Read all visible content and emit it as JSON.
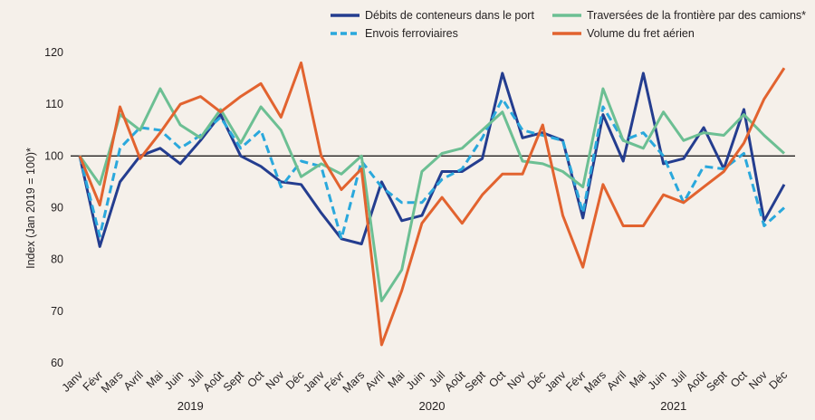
{
  "chart_data": {
    "type": "line",
    "ylabel": "Index (Jan 2019 = 100)*",
    "ylim": [
      60,
      120
    ],
    "yticks": [
      60,
      70,
      80,
      90,
      100,
      110,
      120
    ],
    "reference_line": 100,
    "categories": [
      "Janv",
      "Févr",
      "Mars",
      "Avril",
      "Mai",
      "Juin",
      "Juil",
      "Août",
      "Sept",
      "Oct",
      "Nov",
      "Déc",
      "Janv",
      "Févr",
      "Mars",
      "Avril",
      "Mai",
      "Juin",
      "Juil",
      "Août",
      "Sept",
      "Oct",
      "Nov",
      "Déc",
      "Janv",
      "Févr",
      "Mars",
      "Avril",
      "Mai",
      "Juin",
      "Juil",
      "Août",
      "Sept",
      "Oct",
      "Nov",
      "Déc"
    ],
    "years": [
      {
        "label": "2019",
        "start": 0,
        "end": 11
      },
      {
        "label": "2020",
        "start": 12,
        "end": 23
      },
      {
        "label": "2021",
        "start": 24,
        "end": 35
      }
    ],
    "legend_position": "top-right",
    "series": [
      {
        "name": "Débits de conteneurs dans le port",
        "color": "#243d8f",
        "dash": "solid",
        "values": [
          100,
          82.5,
          95,
          100,
          101.5,
          98.5,
          103,
          108,
          100,
          98,
          95,
          94.5,
          89,
          84,
          83,
          95,
          87.5,
          88.5,
          97,
          97,
          99.5,
          116,
          103.5,
          104.5,
          103,
          88,
          108,
          99,
          116,
          98.5,
          99.5,
          105.5,
          97.5,
          109,
          87.5,
          94.5
        ]
      },
      {
        "name": "Envois ferroviaires",
        "color": "#2aa8dc",
        "dash": "dashed",
        "values": [
          100,
          84.5,
          101.5,
          105.5,
          105,
          101.5,
          104,
          107.5,
          101.5,
          105,
          94,
          99,
          98,
          84,
          99,
          94,
          91,
          91,
          95.5,
          97.5,
          103.5,
          111,
          105,
          104,
          103,
          89,
          109.5,
          103,
          104.5,
          100,
          91,
          98,
          97.5,
          100.5,
          86.5,
          90
        ]
      },
      {
        "name": "Traversées de la frontière par des camions*",
        "color": "#6cbf93",
        "dash": "solid",
        "values": [
          100,
          94.5,
          108,
          105,
          113,
          106,
          103.5,
          109,
          102.5,
          109.5,
          105,
          96,
          98.5,
          96.5,
          100,
          72,
          78,
          97,
          100.5,
          101.5,
          105,
          108.5,
          99,
          98.5,
          97,
          94,
          113,
          103,
          101.5,
          108.5,
          103,
          104.5,
          104,
          108,
          104,
          100.5
        ]
      },
      {
        "name": "Volume du fret aérien",
        "color": "#e2632f",
        "dash": "solid",
        "values": [
          100,
          90.5,
          109.5,
          99.5,
          104.5,
          110,
          111.5,
          108.5,
          111.5,
          114,
          107.5,
          118,
          100,
          93.5,
          97.5,
          63.5,
          74,
          87,
          92,
          87,
          92.5,
          96.5,
          96.5,
          106,
          88.5,
          78.5,
          94.5,
          86.5,
          86.5,
          92.5,
          91,
          94,
          97,
          102.5,
          111,
          117
        ]
      }
    ]
  }
}
